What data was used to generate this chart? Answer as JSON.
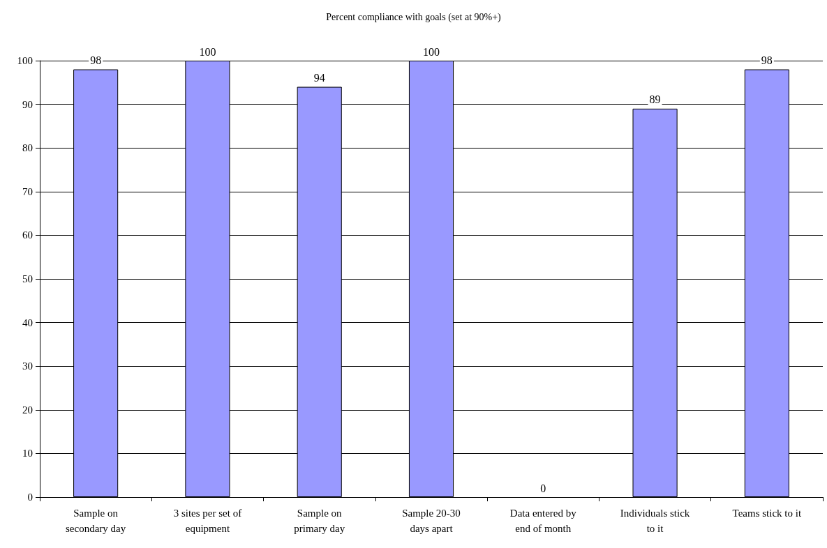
{
  "chart_data": {
    "type": "bar",
    "title": "Percent compliance with goals (set at 90%+)",
    "categories": [
      "Sample on\nsecondary day",
      "3 sites per set of\nequipment",
      "Sample on\nprimary day",
      "Sample 20-30\ndays apart",
      "Data entered by\nend of month",
      "Individuals stick\nto it",
      "Teams stick to it"
    ],
    "values": [
      98,
      100,
      94,
      100,
      0,
      89,
      98
    ],
    "color": "#9999ff",
    "ylim": [
      0,
      100
    ],
    "yticks": [
      0,
      10,
      20,
      30,
      40,
      50,
      60,
      70,
      80,
      90,
      100
    ],
    "grid": "y",
    "data_labels": true
  }
}
